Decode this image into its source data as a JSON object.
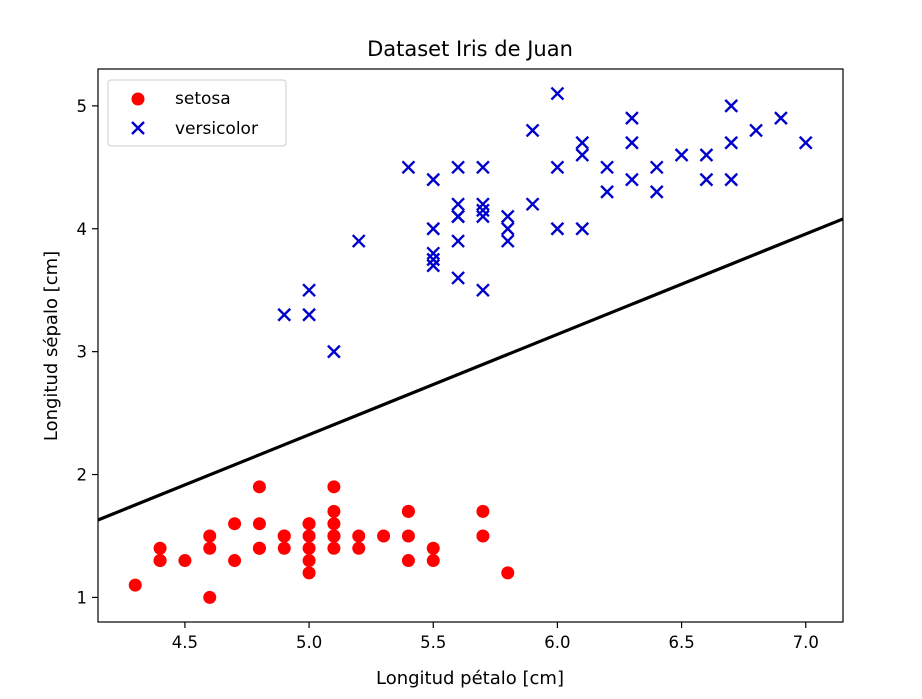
{
  "chart_data": {
    "type": "scatter",
    "title": "Dataset Iris de Juan",
    "xlabel": "Longitud pétalo  [cm]",
    "ylabel": "Longitud sépalo [cm]",
    "xlim": [
      4.15,
      7.15
    ],
    "ylim": [
      0.8,
      5.3
    ],
    "xticks": [
      4.5,
      5.0,
      5.5,
      6.0,
      6.5,
      7.0
    ],
    "xtick_labels": [
      "4.5",
      "5.0",
      "5.5",
      "6.0",
      "6.5",
      "7.0"
    ],
    "yticks": [
      1,
      2,
      3,
      4,
      5
    ],
    "ytick_labels": [
      "1",
      "2",
      "3",
      "4",
      "5"
    ],
    "grid": false,
    "legend_position": "top-left",
    "series": [
      {
        "name": "setosa",
        "marker": "circle",
        "color": "#ff0000",
        "x": [
          4.3,
          4.4,
          4.4,
          4.4,
          4.5,
          4.6,
          4.6,
          4.6,
          4.7,
          4.7,
          4.8,
          4.8,
          4.8,
          4.8,
          4.9,
          4.9,
          4.9,
          5.0,
          5.0,
          5.0,
          5.0,
          5.0,
          5.0,
          5.1,
          5.1,
          5.1,
          5.1,
          5.1,
          5.1,
          5.2,
          5.2,
          5.3,
          5.4,
          5.4,
          5.4,
          5.4,
          5.5,
          5.5,
          5.7,
          5.7,
          5.8
        ],
        "y": [
          1.1,
          1.4,
          1.3,
          1.3,
          1.3,
          1.0,
          1.5,
          1.4,
          1.6,
          1.3,
          1.9,
          1.6,
          1.4,
          1.4,
          1.5,
          1.5,
          1.4,
          1.6,
          1.5,
          1.4,
          1.3,
          1.2,
          1.6,
          1.9,
          1.7,
          1.6,
          1.5,
          1.5,
          1.4,
          1.5,
          1.4,
          1.5,
          1.7,
          1.7,
          1.5,
          1.3,
          1.4,
          1.3,
          1.7,
          1.5,
          1.2
        ]
      },
      {
        "name": "versicolor",
        "marker": "x",
        "color": "#0000cc",
        "x": [
          4.9,
          5.0,
          5.0,
          5.1,
          5.2,
          5.4,
          5.5,
          5.5,
          5.5,
          5.5,
          5.5,
          5.6,
          5.6,
          5.6,
          5.6,
          5.6,
          5.6,
          5.7,
          5.7,
          5.7,
          5.7,
          5.7,
          5.8,
          5.8,
          5.8,
          5.9,
          5.9,
          6.0,
          6.0,
          6.0,
          6.1,
          6.1,
          6.1,
          6.2,
          6.2,
          6.3,
          6.3,
          6.3,
          6.4,
          6.4,
          6.5,
          6.6,
          6.6,
          6.7,
          6.7,
          6.7,
          6.8,
          6.9,
          7.0
        ],
        "y": [
          3.3,
          3.5,
          3.3,
          3.0,
          3.9,
          4.5,
          4.4,
          4.0,
          3.8,
          3.7,
          3.75,
          4.5,
          4.2,
          4.1,
          3.9,
          3.6,
          4.1,
          4.5,
          4.2,
          4.1,
          3.5,
          4.15,
          4.1,
          4.0,
          3.9,
          4.8,
          4.2,
          5.1,
          4.5,
          4.0,
          4.7,
          4.6,
          4.0,
          4.5,
          4.3,
          4.9,
          4.7,
          4.4,
          4.5,
          4.3,
          4.6,
          4.6,
          4.4,
          5.0,
          4.7,
          4.4,
          4.8,
          4.9,
          4.7
        ]
      }
    ],
    "decision_line": {
      "name": "decision-boundary",
      "color": "#000000",
      "x": [
        4.15,
        7.15
      ],
      "y": [
        1.63,
        4.08
      ]
    }
  }
}
